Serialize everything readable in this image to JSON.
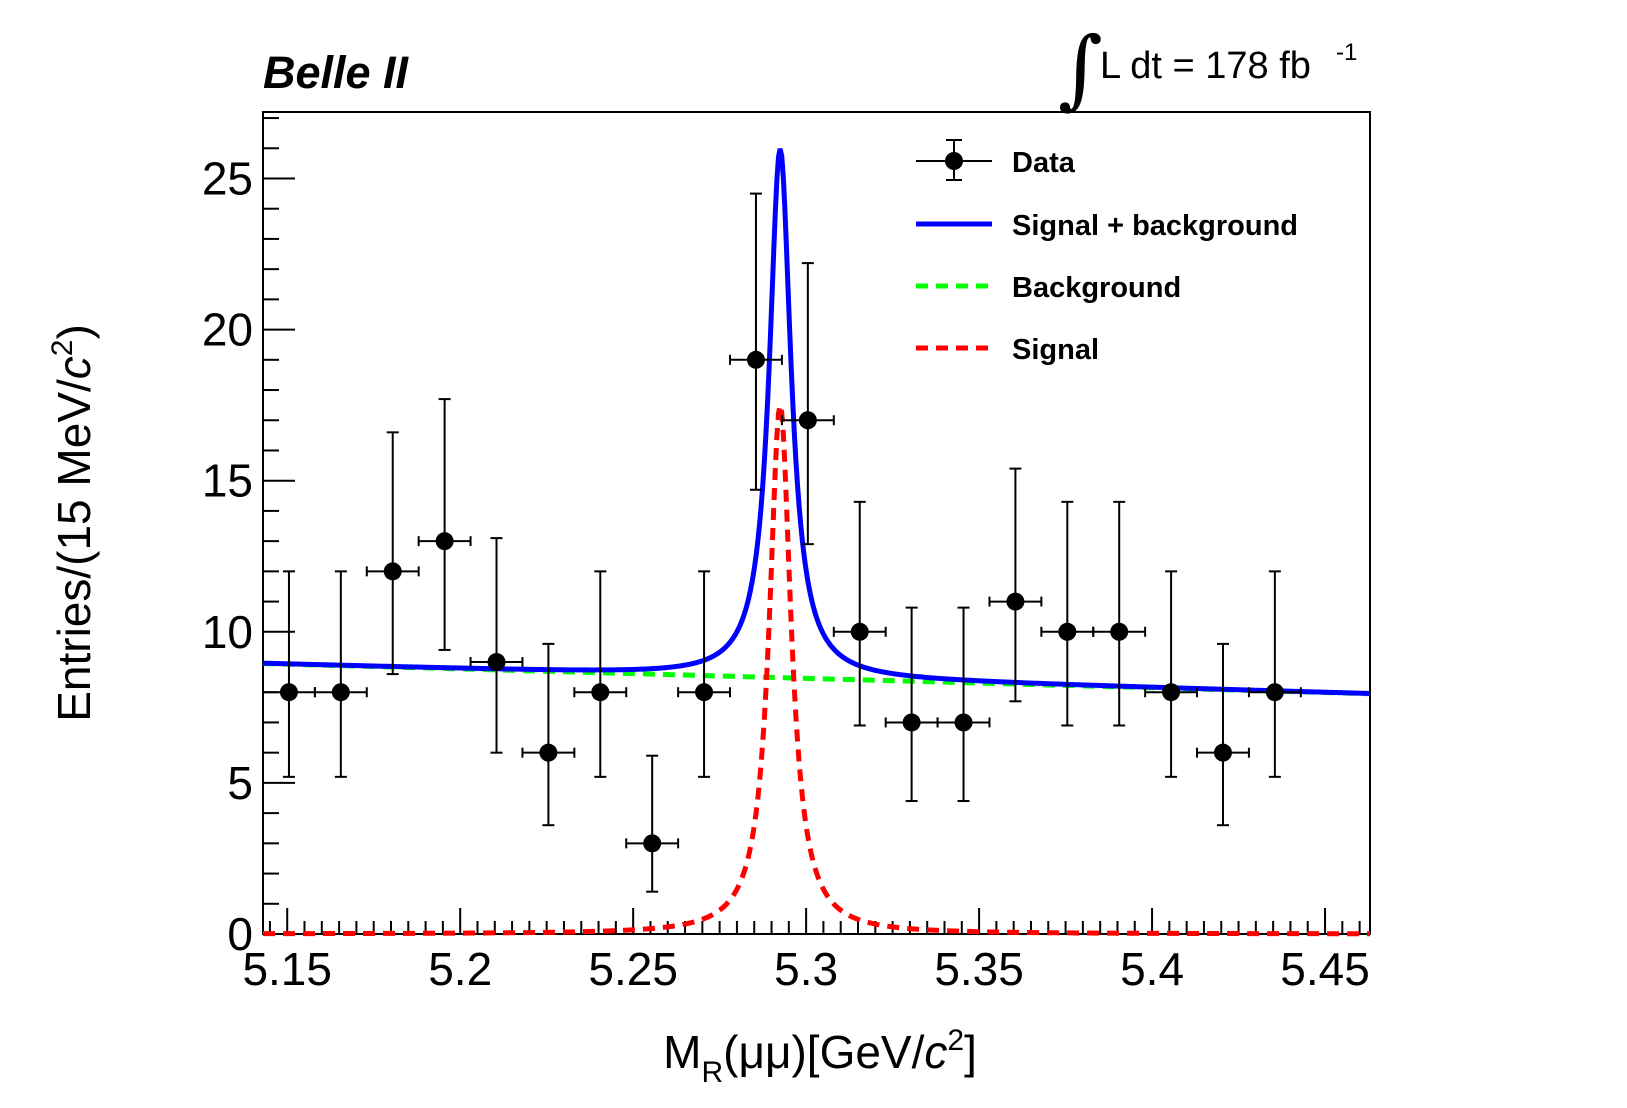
{
  "chart_data": {
    "type": "scatter",
    "experiment_label": "Belle II",
    "luminosity_label": {
      "integral_symbol": "∫",
      "text": "L dt = 178 fb",
      "exponent": "-1"
    },
    "xlabel": {
      "main": "M",
      "sub": "R",
      "mid": "(μμ)[GeV/",
      "c": "c",
      "sup": "2",
      "end": "]"
    },
    "ylabel": {
      "main": "Entries/(15 MeV/",
      "c": "c",
      "sup": "2",
      "end": ")"
    },
    "xlim": [
      5.143,
      5.463
    ],
    "ylim": [
      0,
      27.2
    ],
    "x_ticks": [
      5.15,
      5.2,
      5.25,
      5.3,
      5.35,
      5.4,
      5.45
    ],
    "x_tick_labels": [
      "5.15",
      "5.2",
      "5.25",
      "5.3",
      "5.35",
      "5.4",
      "5.45"
    ],
    "y_ticks": [
      0,
      5,
      10,
      15,
      20,
      25
    ],
    "y_tick_labels": [
      "0",
      "5",
      "10",
      "15",
      "20",
      "25"
    ],
    "bin_half_width": 0.0075,
    "data_points": [
      {
        "x": 5.1505,
        "y": 8,
        "err_lo": 2.8,
        "err_hi": 4.0
      },
      {
        "x": 5.1655,
        "y": 8,
        "err_lo": 2.8,
        "err_hi": 4.0
      },
      {
        "x": 5.1805,
        "y": 12,
        "err_lo": 3.4,
        "err_hi": 4.6
      },
      {
        "x": 5.1955,
        "y": 13,
        "err_lo": 3.6,
        "err_hi": 4.7
      },
      {
        "x": 5.2105,
        "y": 9,
        "err_lo": 3.0,
        "err_hi": 4.1
      },
      {
        "x": 5.2255,
        "y": 6,
        "err_lo": 2.4,
        "err_hi": 3.6
      },
      {
        "x": 5.2405,
        "y": 8,
        "err_lo": 2.8,
        "err_hi": 4.0
      },
      {
        "x": 5.2555,
        "y": 3,
        "err_lo": 1.6,
        "err_hi": 2.9
      },
      {
        "x": 5.2705,
        "y": 8,
        "err_lo": 2.8,
        "err_hi": 4.0
      },
      {
        "x": 5.2855,
        "y": 19,
        "err_lo": 4.3,
        "err_hi": 5.5
      },
      {
        "x": 5.3005,
        "y": 17,
        "err_lo": 4.1,
        "err_hi": 5.2
      },
      {
        "x": 5.3155,
        "y": 10,
        "err_lo": 3.1,
        "err_hi": 4.3
      },
      {
        "x": 5.3305,
        "y": 7,
        "err_lo": 2.6,
        "err_hi": 3.8
      },
      {
        "x": 5.3455,
        "y": 7,
        "err_lo": 2.6,
        "err_hi": 3.8
      },
      {
        "x": 5.3605,
        "y": 11,
        "err_lo": 3.3,
        "err_hi": 4.4
      },
      {
        "x": 5.3755,
        "y": 10,
        "err_lo": 3.1,
        "err_hi": 4.3
      },
      {
        "x": 5.3905,
        "y": 10,
        "err_lo": 3.1,
        "err_hi": 4.3
      },
      {
        "x": 5.4055,
        "y": 8,
        "err_lo": 2.8,
        "err_hi": 4.0
      },
      {
        "x": 5.4205,
        "y": 6,
        "err_lo": 2.4,
        "err_hi": 3.6
      },
      {
        "x": 5.4355,
        "y": 8,
        "err_lo": 2.8,
        "err_hi": 4.0
      }
    ],
    "fit": {
      "peak_position": 5.2925,
      "signal_height": 17.5,
      "signal_gamma": 0.0038,
      "background_start": {
        "x": 5.143,
        "y": 8.95
      },
      "background_end": {
        "x": 5.463,
        "y": 7.95
      }
    },
    "series": [
      {
        "name": "Data",
        "color": "#000000",
        "style": "markers-errorbars"
      },
      {
        "name": "Signal + background",
        "color": "#0000ff",
        "style": "solid"
      },
      {
        "name": "Background",
        "color": "#00ff00",
        "style": "dashed"
      },
      {
        "name": "Signal",
        "color": "#ff0000",
        "style": "dashed"
      }
    ],
    "legend_position": "top-right"
  }
}
